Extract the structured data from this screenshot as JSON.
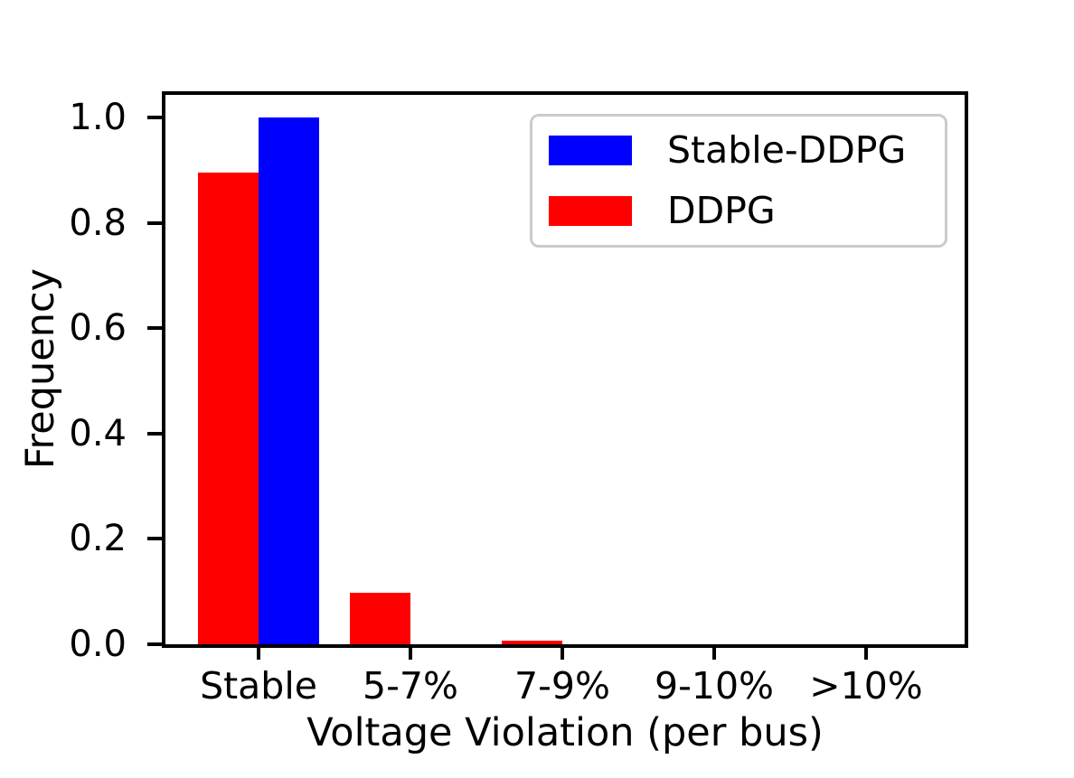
{
  "chart_data": {
    "type": "bar",
    "title": "",
    "xlabel": "Voltage Violation (per bus)",
    "ylabel": "Frequency",
    "categories": [
      "Stable",
      "5-7%",
      "7-9%",
      "9-10%",
      ">10%"
    ],
    "series": [
      {
        "name": "Stable-DDPG",
        "color": "#0000ff",
        "values": [
          1.0,
          0,
          0,
          0,
          0
        ]
      },
      {
        "name": "DDPG",
        "color": "#ff0000",
        "values": [
          0.895,
          0.0975,
          0.0075,
          0,
          0
        ]
      }
    ],
    "ylim": [
      0,
      1.05
    ],
    "yticks": [
      0.0,
      0.2,
      0.4,
      0.6,
      0.8,
      1.0
    ],
    "ytick_labels": [
      "0.0",
      "0.2",
      "0.4",
      "0.6",
      "0.8",
      "1.0"
    ],
    "legend_position": "upper right",
    "grid": false,
    "background": "#ffffff",
    "axis_color": "#000000",
    "legend_border_color": "#cbcbcb"
  }
}
